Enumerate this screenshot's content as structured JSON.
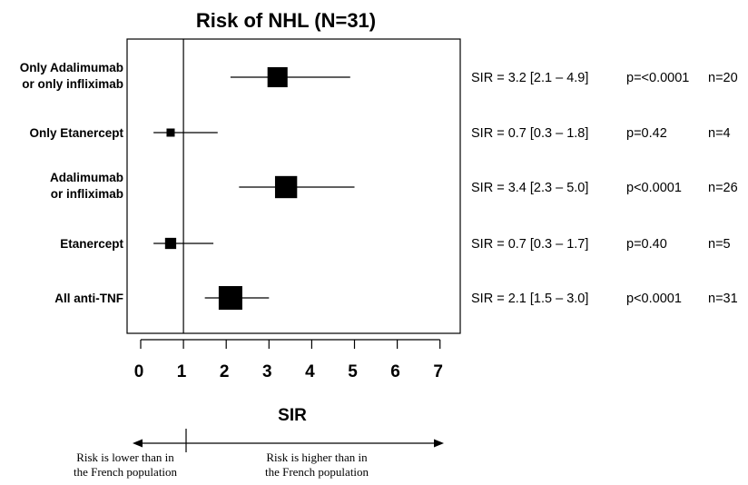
{
  "chart_data": {
    "type": "forest",
    "title": "Risk of NHL (N=31)",
    "xlabel": "SIR",
    "xlim": [
      -0.3,
      7.3
    ],
    "xticks": [
      0,
      1,
      2,
      3,
      4,
      5,
      6,
      7
    ],
    "reference_line": 1,
    "rows": [
      {
        "label": [
          "Only Adalimumab",
          "or only infliximab"
        ],
        "estimate": 3.2,
        "ci": [
          2.1,
          4.9
        ],
        "weight": 20,
        "sir_text": "SIR = 3.2 [2.1 – 4.9]",
        "p_text": "p=<0.0001",
        "n_text": "n=20"
      },
      {
        "label": [
          "Only Etanercept"
        ],
        "estimate": 0.7,
        "ci": [
          0.3,
          1.8
        ],
        "weight": 4,
        "sir_text": "SIR = 0.7 [0.3 – 1.8]",
        "p_text": "p=0.42",
        "n_text": "n=4"
      },
      {
        "label": [
          "Adalimumab",
          "or infliximab"
        ],
        "estimate": 3.4,
        "ci": [
          2.3,
          5.0
        ],
        "weight": 26,
        "sir_text": "SIR = 3.4 [2.3 – 5.0]",
        "p_text": "p<0.0001",
        "n_text": "n=26"
      },
      {
        "label": [
          "Etanercept"
        ],
        "estimate": 0.7,
        "ci": [
          0.3,
          1.7
        ],
        "weight": 5,
        "sir_text": "SIR = 0.7 [0.3 – 1.7]",
        "p_text": "p=0.40",
        "n_text": "n=5"
      },
      {
        "label": [
          "All anti-TNF"
        ],
        "estimate": 2.1,
        "ci": [
          1.5,
          3.0
        ],
        "weight": 31,
        "sir_text": "SIR = 2.1 [1.5 – 3.0]",
        "p_text": "p<0.0001",
        "n_text": "n=31"
      }
    ],
    "grid": false
  },
  "footer": {
    "lower_text": [
      "Risk is lower than in",
      "the French population"
    ],
    "higher_text": [
      "Risk is higher than in",
      "the French population"
    ]
  },
  "colors": {
    "ink": "#000000",
    "background": "#ffffff"
  }
}
